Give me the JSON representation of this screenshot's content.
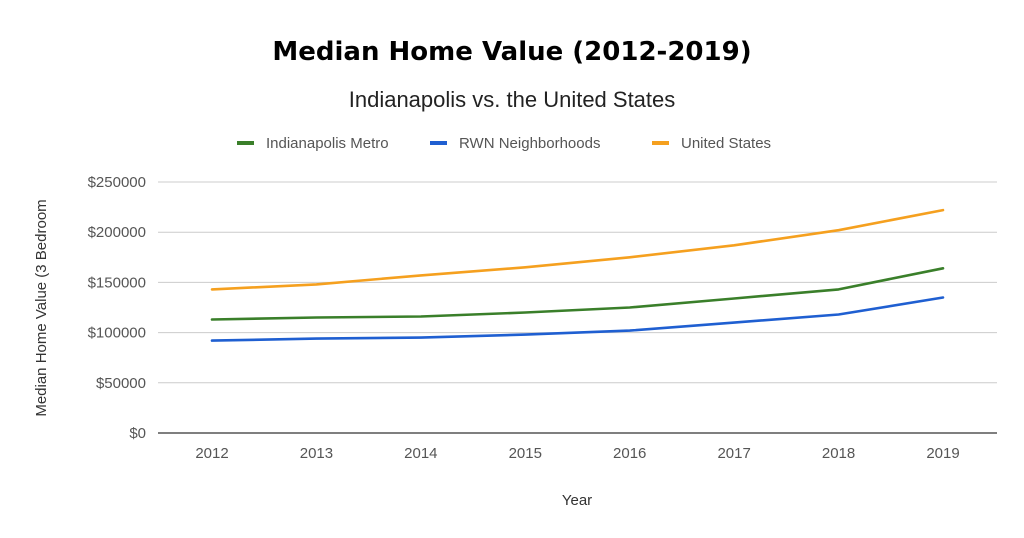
{
  "chart_data": {
    "type": "line",
    "title": "Median Home Value (2012-2019)",
    "subtitle": "Indianapolis vs. the United States",
    "xlabel": "Year",
    "ylabel": "Median Home Value (3 Bedroom",
    "categories": [
      "2012",
      "2013",
      "2014",
      "2015",
      "2016",
      "2017",
      "2018",
      "2019"
    ],
    "ylim": [
      0,
      250000
    ],
    "yticks": [
      0,
      50000,
      100000,
      150000,
      200000,
      250000
    ],
    "ytick_labels": [
      "$0",
      "$50000",
      "$100000",
      "$150000",
      "$200000",
      "$250000"
    ],
    "grid": true,
    "legend_position": "top",
    "series": [
      {
        "name": "Indianapolis Metro",
        "color": "#3a7f2a",
        "values": [
          113000,
          115000,
          116000,
          120000,
          125000,
          134000,
          143000,
          164000
        ]
      },
      {
        "name": "RWN Neighborhoods",
        "color": "#1f5fd1",
        "values": [
          92000,
          94000,
          95000,
          98000,
          102000,
          110000,
          118000,
          135000
        ]
      },
      {
        "name": "United States",
        "color": "#f5a01f",
        "values": [
          143000,
          148000,
          157000,
          165000,
          175000,
          187000,
          202000,
          222000
        ]
      }
    ]
  }
}
